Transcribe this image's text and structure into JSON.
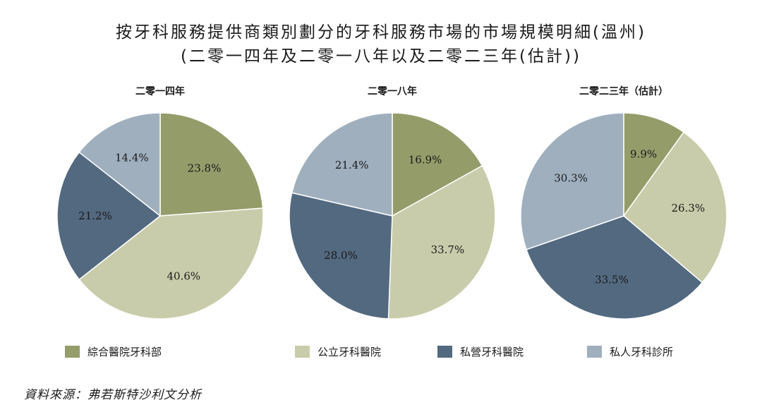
{
  "title": {
    "line1": "按牙科服務提供商類別劃分的牙科服務市場的市場規模明細(溫州)",
    "line2": "(二零一四年及二零一八年以及二零二三年(估計))"
  },
  "source": "資料來源：弗若斯特沙利文分析",
  "colors": {
    "綜合醫院牙科部": "#949c6a",
    "公立牙科醫院": "#c9ccaa",
    "私營牙科醫院": "#526980",
    "私人牙科診所": "#9fafbe"
  },
  "legend": [
    {
      "label": "綜合醫院牙科部",
      "color": "#949c6a"
    },
    {
      "label": "公立牙科醫院",
      "color": "#c9ccaa"
    },
    {
      "label": "私營牙科醫院",
      "color": "#526980"
    },
    {
      "label": "私人牙科診所",
      "color": "#9fafbe"
    }
  ],
  "chart_data": [
    {
      "type": "pie",
      "title": "二零一四年",
      "categories": [
        "綜合醫院牙科部",
        "公立牙科醫院",
        "私營牙科醫院",
        "私人牙科診所"
      ],
      "values": [
        23.8,
        40.6,
        21.2,
        14.4
      ],
      "labels": [
        "23.8%",
        "40.6%",
        "21.2%",
        "14.4%"
      ]
    },
    {
      "type": "pie",
      "title": "二零一八年",
      "categories": [
        "綜合醫院牙科部",
        "公立牙科醫院",
        "私營牙科醫院",
        "私人牙科診所"
      ],
      "values": [
        16.9,
        33.7,
        28.0,
        21.4
      ],
      "labels": [
        "16.9%",
        "33.7%",
        "28.0%",
        "21.4%"
      ]
    },
    {
      "type": "pie",
      "title": "二零二三年（估計）",
      "categories": [
        "綜合醫院牙科部",
        "公立牙科醫院",
        "私營牙科醫院",
        "私人牙科診所"
      ],
      "values": [
        9.9,
        26.3,
        33.5,
        30.3
      ],
      "labels": [
        "9.9%",
        "26.3%",
        "33.5%",
        "30.3%"
      ]
    }
  ]
}
